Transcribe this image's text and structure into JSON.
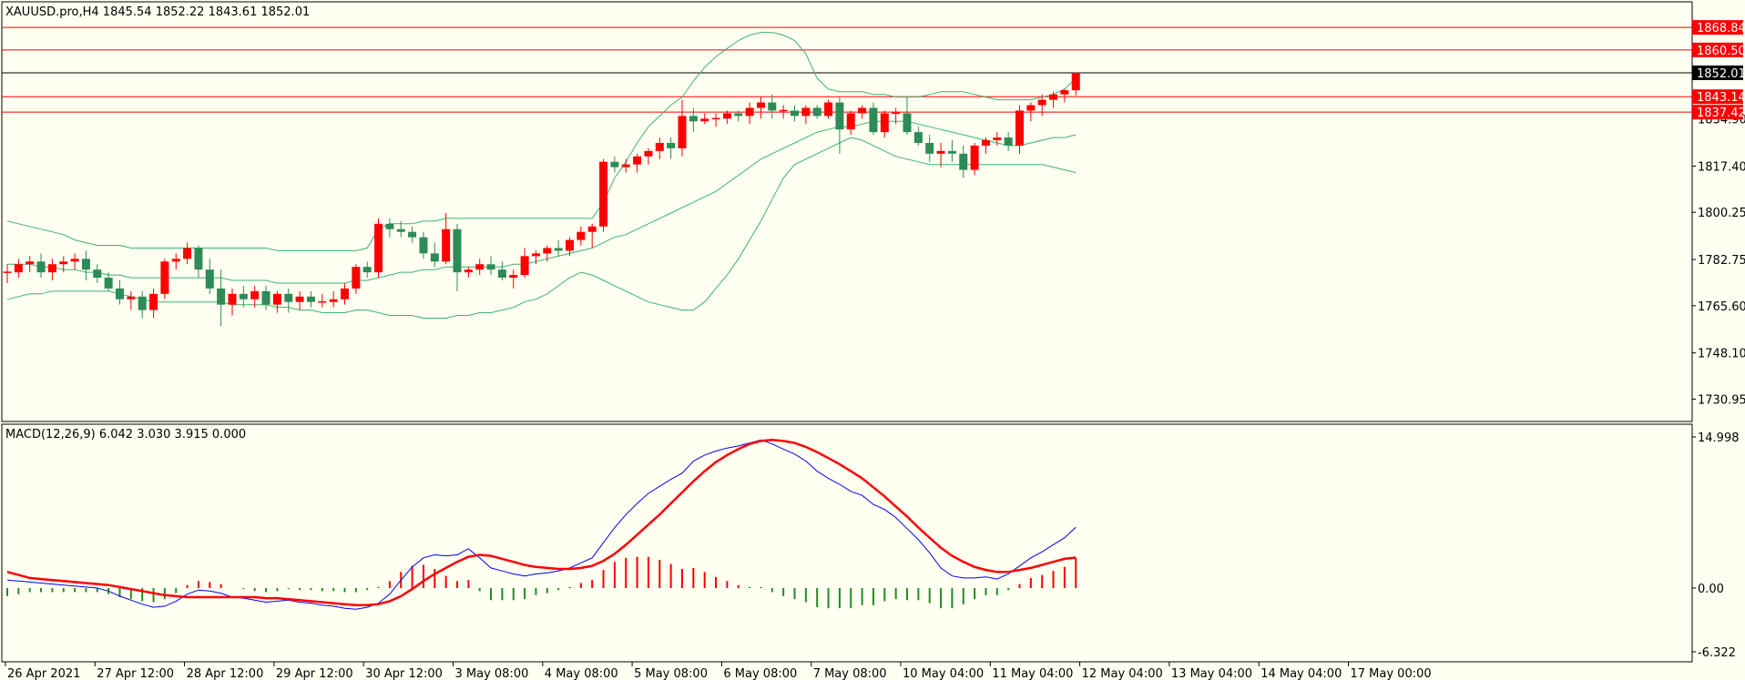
{
  "header": {
    "symbol_line": "XAUUSD.pro,H4  1845.54 1852.22 1843.61 1852.01",
    "macd_line": "MACD(12,26,9) 6.042 3.030 3.915 0.000"
  },
  "colors": {
    "background": "#fffff2",
    "frame": "#000000",
    "bull": "#ff0000",
    "bear": "#2e8b57",
    "bands": "#3cb371",
    "hline": "#ff0000",
    "current_line": "#000000",
    "macd_main": "#0000ff",
    "macd_signal": "#ff0000",
    "hist_pos": "#ff0000",
    "hist_neg": "#228b22"
  },
  "chart_data": [
    {
      "type": "candlestick",
      "title": "XAUUSD.pro,H4",
      "ylim": [
        1723,
        1878
      ],
      "y_ticks": [
        1730.95,
        1748.1,
        1765.6,
        1782.75,
        1800.25,
        1817.4,
        1834.9
      ],
      "x_ticks": [
        "26 Apr 2021",
        "27 Apr 12:00",
        "28 Apr 12:00",
        "29 Apr 12:00",
        "30 Apr 12:00",
        "3 May 08:00",
        "4 May 08:00",
        "5 May 08:00",
        "6 May 08:00",
        "7 May 08:00",
        "10 May 04:00",
        "11 May 04:00",
        "12 May 04:00",
        "13 May 04:00",
        "14 May 04:00",
        "17 May 00:00"
      ],
      "price_lines": [
        {
          "value": 1868.84,
          "label": "1868.84"
        },
        {
          "value": 1860.5,
          "label": "1860.50"
        },
        {
          "value": 1843.14,
          "label": "1843.14"
        },
        {
          "value": 1837.42,
          "label": "1837.42"
        }
      ],
      "current_price": {
        "value": 1852.01,
        "label": "1852.01"
      },
      "ohlc": [
        [
          1778,
          1781,
          1774,
          1778
        ],
        [
          1778,
          1783,
          1776,
          1781
        ],
        [
          1781,
          1784,
          1778,
          1782
        ],
        [
          1782,
          1785,
          1776,
          1778
        ],
        [
          1778,
          1783,
          1775,
          1781
        ],
        [
          1781,
          1784,
          1778,
          1782
        ],
        [
          1782,
          1785,
          1779,
          1783
        ],
        [
          1783,
          1786,
          1775,
          1779
        ],
        [
          1779,
          1781,
          1774,
          1776
        ],
        [
          1776,
          1778,
          1771,
          1772
        ],
        [
          1772,
          1775,
          1766,
          1768
        ],
        [
          1768,
          1771,
          1764,
          1769
        ],
        [
          1769,
          1771,
          1761,
          1764
        ],
        [
          1764,
          1772,
          1761,
          1770
        ],
        [
          1770,
          1783,
          1768,
          1782
        ],
        [
          1782,
          1785,
          1779,
          1783
        ],
        [
          1783,
          1789,
          1781,
          1787
        ],
        [
          1787,
          1788,
          1776,
          1779
        ],
        [
          1779,
          1783,
          1770,
          1772
        ],
        [
          1772,
          1779,
          1758,
          1766
        ],
        [
          1766,
          1772,
          1762,
          1770
        ],
        [
          1770,
          1773,
          1765,
          1768
        ],
        [
          1768,
          1773,
          1765,
          1771
        ],
        [
          1771,
          1773,
          1764,
          1766
        ],
        [
          1766,
          1771,
          1763,
          1770
        ],
        [
          1770,
          1772,
          1763,
          1767
        ],
        [
          1767,
          1771,
          1764,
          1769
        ],
        [
          1769,
          1771,
          1765,
          1767
        ],
        [
          1767,
          1770,
          1765,
          1767
        ],
        [
          1767,
          1771,
          1765,
          1768
        ],
        [
          1768,
          1774,
          1766,
          1772
        ],
        [
          1772,
          1781,
          1770,
          1780
        ],
        [
          1780,
          1782,
          1776,
          1778
        ],
        [
          1778,
          1798,
          1776,
          1796
        ],
        [
          1796,
          1798,
          1791,
          1794
        ],
        [
          1794,
          1797,
          1791,
          1793
        ],
        [
          1793,
          1795,
          1789,
          1791
        ],
        [
          1791,
          1793,
          1783,
          1785
        ],
        [
          1785,
          1789,
          1780,
          1782
        ],
        [
          1782,
          1800,
          1781,
          1794
        ],
        [
          1794,
          1796,
          1771,
          1778
        ],
        [
          1778,
          1780,
          1776,
          1779
        ],
        [
          1779,
          1783,
          1777,
          1781
        ],
        [
          1781,
          1784,
          1777,
          1779
        ],
        [
          1779,
          1782,
          1775,
          1776
        ],
        [
          1776,
          1779,
          1772,
          1777
        ],
        [
          1777,
          1787,
          1776,
          1784
        ],
        [
          1784,
          1786,
          1781,
          1785
        ],
        [
          1785,
          1788,
          1782,
          1787
        ],
        [
          1787,
          1790,
          1784,
          1786
        ],
        [
          1786,
          1791,
          1784,
          1790
        ],
        [
          1790,
          1795,
          1788,
          1793
        ],
        [
          1793,
          1796,
          1787,
          1795
        ],
        [
          1795,
          1820,
          1793,
          1819
        ],
        [
          1819,
          1821,
          1815,
          1817
        ],
        [
          1817,
          1820,
          1815,
          1818
        ],
        [
          1818,
          1822,
          1815,
          1821
        ],
        [
          1821,
          1824,
          1818,
          1823
        ],
        [
          1823,
          1828,
          1820,
          1826
        ],
        [
          1826,
          1828,
          1820,
          1824
        ],
        [
          1824,
          1842,
          1821,
          1836
        ],
        [
          1836,
          1839,
          1830,
          1834
        ],
        [
          1834,
          1837,
          1833,
          1835
        ],
        [
          1835,
          1837,
          1832,
          1835
        ],
        [
          1835,
          1838,
          1833,
          1837
        ],
        [
          1837,
          1838,
          1834,
          1836
        ],
        [
          1836,
          1841,
          1833,
          1839
        ],
        [
          1839,
          1843,
          1835,
          1841
        ],
        [
          1841,
          1844,
          1835,
          1838
        ],
        [
          1838,
          1840,
          1835,
          1838
        ],
        [
          1838,
          1840,
          1834,
          1836
        ],
        [
          1836,
          1840,
          1833,
          1839
        ],
        [
          1839,
          1840,
          1835,
          1836
        ],
        [
          1836,
          1842,
          1835,
          1841
        ],
        [
          1841,
          1843,
          1822,
          1831
        ],
        [
          1831,
          1838,
          1829,
          1837
        ],
        [
          1837,
          1840,
          1835,
          1839
        ],
        [
          1839,
          1841,
          1829,
          1830
        ],
        [
          1830,
          1838,
          1828,
          1837
        ],
        [
          1837,
          1839,
          1833,
          1837
        ],
        [
          1837,
          1843,
          1829,
          1830
        ],
        [
          1830,
          1832,
          1825,
          1826
        ],
        [
          1826,
          1829,
          1819,
          1822
        ],
        [
          1822,
          1826,
          1817,
          1823
        ],
        [
          1823,
          1827,
          1819,
          1822
        ],
        [
          1822,
          1825,
          1813,
          1816
        ],
        [
          1816,
          1826,
          1814,
          1825
        ],
        [
          1825,
          1828,
          1822,
          1827
        ],
        [
          1827,
          1830,
          1825,
          1828
        ],
        [
          1828,
          1830,
          1823,
          1825
        ],
        [
          1825,
          1840,
          1822,
          1838
        ],
        [
          1838,
          1841,
          1834,
          1840
        ],
        [
          1840,
          1844,
          1836,
          1842
        ],
        [
          1842,
          1845,
          1839,
          1844
        ],
        [
          1844,
          1846,
          1841,
          1845.54
        ],
        [
          1845.54,
          1852.22,
          1843.61,
          1852.01
        ]
      ],
      "bands": {
        "upper": [
          1797,
          1796,
          1795,
          1794,
          1793,
          1792,
          1790,
          1789,
          1788,
          1788,
          1788,
          1787,
          1787,
          1787,
          1787,
          1787,
          1787,
          1787,
          1787,
          1787,
          1787,
          1787,
          1787,
          1787,
          1786,
          1786,
          1786,
          1786,
          1786,
          1786,
          1786,
          1786,
          1787,
          1794,
          1796,
          1796,
          1796,
          1797,
          1797,
          1798,
          1798,
          1798,
          1798,
          1798,
          1798,
          1798,
          1798,
          1798,
          1798,
          1798,
          1798,
          1798,
          1798,
          1804,
          1813,
          1819,
          1826,
          1832,
          1836,
          1840,
          1843,
          1849,
          1854,
          1858,
          1861,
          1864,
          1866,
          1867,
          1867,
          1866,
          1864,
          1859,
          1850,
          1846,
          1845,
          1845,
          1845,
          1844,
          1844,
          1843,
          1843,
          1843,
          1844,
          1845,
          1845,
          1845,
          1844,
          1843,
          1842,
          1842,
          1842,
          1842,
          1843,
          1844,
          1846,
          1850
        ],
        "middle": [
          1781,
          1781,
          1781,
          1780,
          1780,
          1779,
          1779,
          1778,
          1778,
          1777,
          1777,
          1776,
          1776,
          1776,
          1776,
          1776,
          1776,
          1776,
          1776,
          1776,
          1775,
          1775,
          1775,
          1775,
          1774,
          1774,
          1774,
          1774,
          1774,
          1774,
          1774,
          1775,
          1775,
          1776,
          1777,
          1778,
          1778,
          1779,
          1779,
          1780,
          1780,
          1780,
          1780,
          1780,
          1780,
          1781,
          1781,
          1782,
          1783,
          1784,
          1785,
          1786,
          1787,
          1789,
          1791,
          1792,
          1794,
          1796,
          1798,
          1800,
          1802,
          1804,
          1806,
          1808,
          1811,
          1814,
          1817,
          1820,
          1822,
          1824,
          1826,
          1828,
          1830,
          1831,
          1832,
          1832,
          1833,
          1834,
          1834,
          1834,
          1834,
          1833,
          1832,
          1831,
          1830,
          1829,
          1828,
          1827,
          1826,
          1825,
          1825,
          1826,
          1827,
          1828,
          1828,
          1829
        ],
        "lower": [
          1768,
          1769,
          1770,
          1770,
          1771,
          1771,
          1771,
          1771,
          1771,
          1771,
          1770,
          1769,
          1768,
          1767,
          1767,
          1767,
          1767,
          1767,
          1767,
          1767,
          1766,
          1766,
          1766,
          1766,
          1765,
          1765,
          1764,
          1764,
          1763,
          1763,
          1763,
          1764,
          1764,
          1763,
          1762,
          1762,
          1762,
          1761,
          1761,
          1761,
          1762,
          1762,
          1763,
          1763,
          1764,
          1765,
          1767,
          1768,
          1770,
          1773,
          1776,
          1778,
          1777,
          1775,
          1773,
          1771,
          1769,
          1767,
          1766,
          1765,
          1764,
          1764,
          1767,
          1772,
          1777,
          1783,
          1790,
          1797,
          1805,
          1813,
          1818,
          1820,
          1822,
          1824,
          1826,
          1828,
          1827,
          1825,
          1823,
          1821,
          1820,
          1819,
          1818,
          1818,
          1818,
          1818,
          1818,
          1818,
          1818,
          1818,
          1818,
          1818,
          1818,
          1817,
          1816,
          1815
        ]
      }
    },
    {
      "type": "macd",
      "title": "MACD(12,26,9)",
      "ylim": [
        -6.322,
        14.998
      ],
      "y_ticks": [
        14.998,
        0.0,
        -6.322
      ],
      "main_last": 6.042,
      "signal_last": 3.03,
      "main": [
        0.8,
        0.7,
        0.6,
        0.5,
        0.4,
        0.3,
        0.2,
        0.1,
        0.0,
        -0.3,
        -0.8,
        -1.2,
        -1.6,
        -1.9,
        -1.8,
        -1.3,
        -0.6,
        -0.2,
        -0.3,
        -0.5,
        -0.9,
        -1.0,
        -1.2,
        -1.4,
        -1.3,
        -1.2,
        -1.4,
        -1.5,
        -1.7,
        -1.8,
        -2.0,
        -2.1,
        -1.9,
        -1.5,
        -0.6,
        0.8,
        2.1,
        3.0,
        3.3,
        3.2,
        3.3,
        3.9,
        3.0,
        2.0,
        1.7,
        1.4,
        1.2,
        1.4,
        1.5,
        1.7,
        2.0,
        2.5,
        3.0,
        4.5,
        6.0,
        7.3,
        8.4,
        9.4,
        10.1,
        10.8,
        11.4,
        12.6,
        13.2,
        13.6,
        13.9,
        14.1,
        14.4,
        14.7,
        14.3,
        13.8,
        13.3,
        12.6,
        11.6,
        10.9,
        10.3,
        9.6,
        9.2,
        8.3,
        7.8,
        7.0,
        5.9,
        4.8,
        3.5,
        2.0,
        1.2,
        1.0,
        1.0,
        1.1,
        0.9,
        1.4,
        2.2,
        3.0,
        3.6,
        4.3,
        5.0,
        6.042
      ],
      "signal": [
        1.6,
        1.3,
        1.0,
        0.9,
        0.8,
        0.7,
        0.6,
        0.5,
        0.4,
        0.3,
        0.1,
        -0.1,
        -0.3,
        -0.5,
        -0.7,
        -0.8,
        -0.9,
        -0.9,
        -0.9,
        -0.9,
        -0.9,
        -0.9,
        -0.9,
        -1.0,
        -1.0,
        -1.1,
        -1.2,
        -1.3,
        -1.4,
        -1.5,
        -1.6,
        -1.7,
        -1.7,
        -1.6,
        -1.3,
        -0.8,
        -0.1,
        0.7,
        1.4,
        2.0,
        2.6,
        3.1,
        3.3,
        3.2,
        2.9,
        2.6,
        2.3,
        2.1,
        2.0,
        1.9,
        1.9,
        2.0,
        2.2,
        2.7,
        3.4,
        4.3,
        5.3,
        6.3,
        7.3,
        8.4,
        9.5,
        10.6,
        11.6,
        12.5,
        13.2,
        13.8,
        14.3,
        14.6,
        14.7,
        14.6,
        14.4,
        14.0,
        13.5,
        12.9,
        12.3,
        11.6,
        10.9,
        10.0,
        9.1,
        8.1,
        7.1,
        6.0,
        5.0,
        4.0,
        3.2,
        2.6,
        2.1,
        1.8,
        1.6,
        1.6,
        1.8,
        2.0,
        2.3,
        2.6,
        2.9,
        3.03
      ],
      "histogram": [
        -0.8,
        -0.6,
        -0.4,
        -0.4,
        -0.4,
        -0.4,
        -0.4,
        -0.4,
        -0.4,
        -0.6,
        -0.9,
        -1.1,
        -1.3,
        -1.4,
        -1.1,
        -0.5,
        0.3,
        0.7,
        0.6,
        0.4,
        0.0,
        -0.1,
        -0.3,
        -0.4,
        -0.3,
        -0.1,
        -0.2,
        -0.2,
        -0.3,
        -0.3,
        -0.4,
        -0.4,
        -0.2,
        0.1,
        0.7,
        1.6,
        2.2,
        2.3,
        1.9,
        1.2,
        0.7,
        0.8,
        -0.3,
        -1.2,
        -1.2,
        -1.2,
        -1.1,
        -0.7,
        -0.5,
        -0.2,
        0.1,
        0.5,
        0.8,
        1.8,
        2.6,
        3.0,
        3.1,
        3.1,
        2.8,
        2.4,
        1.9,
        2.0,
        1.6,
        1.1,
        0.7,
        0.3,
        0.1,
        0.1,
        -0.4,
        -0.8,
        -1.1,
        -1.4,
        -1.9,
        -2.0,
        -2.0,
        -2.0,
        -1.7,
        -1.7,
        -1.3,
        -1.1,
        -1.2,
        -1.2,
        -1.5,
        -2.0,
        -2.0,
        -1.6,
        -1.1,
        -0.7,
        -0.7,
        -0.2,
        0.4,
        1.0,
        1.3,
        1.7,
        2.1,
        3.0
      ]
    }
  ]
}
